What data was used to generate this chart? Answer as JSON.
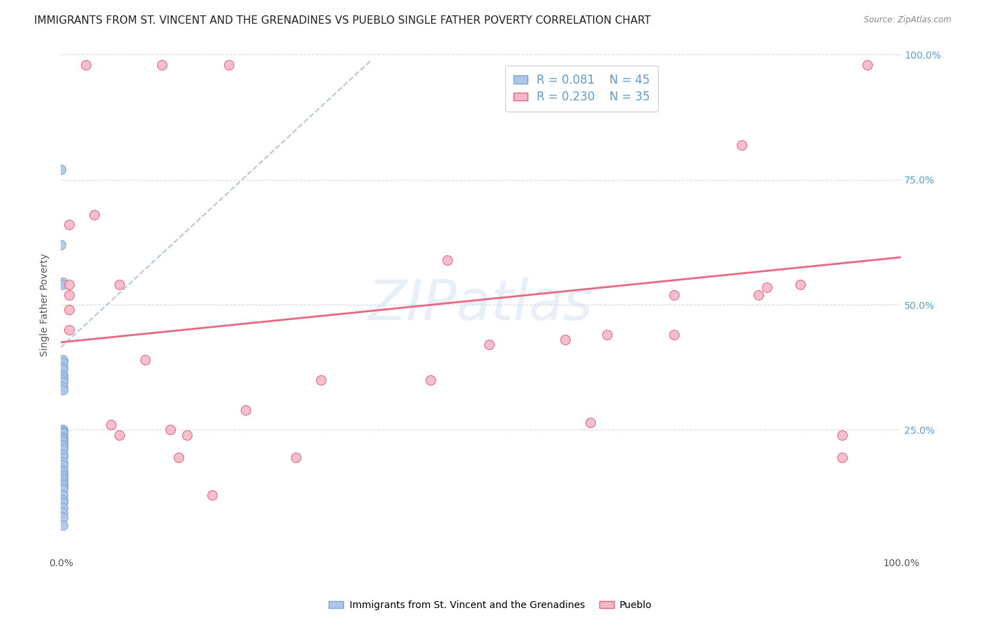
{
  "title": "IMMIGRANTS FROM ST. VINCENT AND THE GRENADINES VS PUEBLO SINGLE FATHER POVERTY CORRELATION CHART",
  "source": "Source: ZipAtlas.com",
  "ylabel": "Single Father Poverty",
  "legend_labels": [
    "Immigrants from St. Vincent and the Grenadines",
    "Pueblo"
  ],
  "r_blue": 0.081,
  "n_blue": 45,
  "r_pink": 0.23,
  "n_pink": 35,
  "blue_color": "#aec6e8",
  "pink_color": "#f5b8c8",
  "blue_edge_color": "#7ba7d4",
  "pink_edge_color": "#e8607a",
  "blue_trend_color": "#a0b8d8",
  "pink_trend_color": "#e8607a",
  "watermark": "ZIPatlas",
  "blue_scatter": [
    [
      0.0,
      0.77
    ],
    [
      0.0,
      0.62
    ],
    [
      0.002,
      0.545
    ],
    [
      0.002,
      0.54
    ],
    [
      0.002,
      0.39
    ],
    [
      0.002,
      0.385
    ],
    [
      0.002,
      0.375
    ],
    [
      0.002,
      0.37
    ],
    [
      0.002,
      0.36
    ],
    [
      0.002,
      0.355
    ],
    [
      0.002,
      0.35
    ],
    [
      0.002,
      0.345
    ],
    [
      0.002,
      0.335
    ],
    [
      0.002,
      0.33
    ],
    [
      0.002,
      0.25
    ],
    [
      0.002,
      0.248
    ],
    [
      0.002,
      0.245
    ],
    [
      0.002,
      0.243
    ],
    [
      0.002,
      0.235
    ],
    [
      0.002,
      0.233
    ],
    [
      0.002,
      0.23
    ],
    [
      0.002,
      0.225
    ],
    [
      0.002,
      0.22
    ],
    [
      0.002,
      0.215
    ],
    [
      0.002,
      0.21
    ],
    [
      0.002,
      0.2
    ],
    [
      0.002,
      0.195
    ],
    [
      0.002,
      0.185
    ],
    [
      0.002,
      0.18
    ],
    [
      0.002,
      0.17
    ],
    [
      0.002,
      0.165
    ],
    [
      0.002,
      0.16
    ],
    [
      0.002,
      0.155
    ],
    [
      0.002,
      0.15
    ],
    [
      0.002,
      0.145
    ],
    [
      0.002,
      0.14
    ],
    [
      0.002,
      0.135
    ],
    [
      0.002,
      0.13
    ],
    [
      0.002,
      0.12
    ],
    [
      0.002,
      0.11
    ],
    [
      0.002,
      0.105
    ],
    [
      0.002,
      0.095
    ],
    [
      0.002,
      0.085
    ],
    [
      0.002,
      0.075
    ],
    [
      0.002,
      0.06
    ]
  ],
  "pink_scatter": [
    [
      0.03,
      0.98
    ],
    [
      0.12,
      0.98
    ],
    [
      0.2,
      0.98
    ],
    [
      0.96,
      0.98
    ],
    [
      0.01,
      0.66
    ],
    [
      0.01,
      0.54
    ],
    [
      0.01,
      0.52
    ],
    [
      0.01,
      0.49
    ],
    [
      0.01,
      0.45
    ],
    [
      0.04,
      0.68
    ],
    [
      0.07,
      0.54
    ],
    [
      0.06,
      0.26
    ],
    [
      0.07,
      0.24
    ],
    [
      0.1,
      0.39
    ],
    [
      0.13,
      0.25
    ],
    [
      0.15,
      0.24
    ],
    [
      0.14,
      0.195
    ],
    [
      0.18,
      0.12
    ],
    [
      0.22,
      0.29
    ],
    [
      0.28,
      0.195
    ],
    [
      0.31,
      0.35
    ],
    [
      0.46,
      0.59
    ],
    [
      0.44,
      0.35
    ],
    [
      0.51,
      0.42
    ],
    [
      0.6,
      0.43
    ],
    [
      0.63,
      0.265
    ],
    [
      0.65,
      0.44
    ],
    [
      0.73,
      0.52
    ],
    [
      0.73,
      0.44
    ],
    [
      0.81,
      0.82
    ],
    [
      0.83,
      0.52
    ],
    [
      0.84,
      0.535
    ],
    [
      0.88,
      0.54
    ],
    [
      0.93,
      0.24
    ],
    [
      0.93,
      0.195
    ]
  ],
  "pink_trend_x": [
    0.0,
    1.0
  ],
  "pink_trend_y": [
    0.425,
    0.595
  ],
  "blue_trend_x": [
    0.0,
    0.37
  ],
  "blue_trend_y": [
    0.415,
    0.99
  ],
  "xlim": [
    0.0,
    1.0
  ],
  "ylim": [
    0.0,
    1.0
  ],
  "background_color": "#ffffff",
  "grid_color": "#d8d8e8",
  "title_fontsize": 11,
  "axis_fontsize": 10,
  "right_tick_color": "#5b9bd5",
  "marker_size": 100
}
